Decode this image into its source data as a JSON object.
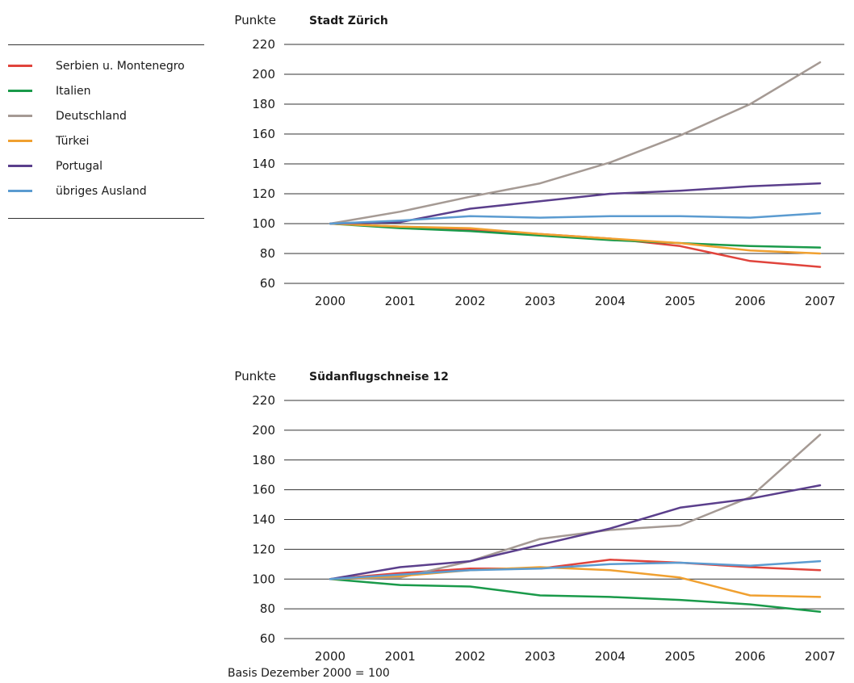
{
  "legend": {
    "items": [
      {
        "label": "Serbien u. Montenegro",
        "color": "#e0443c"
      },
      {
        "label": "Italien",
        "color": "#1a9a4a"
      },
      {
        "label": "Deutschland",
        "color": "#a59a94"
      },
      {
        "label": "Türkei",
        "color": "#f0a030"
      },
      {
        "label": "Portugal",
        "color": "#5b3f8c"
      },
      {
        "label": "übriges Ausland",
        "color": "#5b9bd0"
      }
    ]
  },
  "footnote": "Basis Dezember 2000 = 100",
  "chart_data": [
    {
      "type": "line",
      "title": "Stadt Zürich",
      "ylabel": "Punkte",
      "xlabel": "",
      "ylim": [
        60,
        220
      ],
      "yticks": [
        60,
        80,
        100,
        120,
        140,
        160,
        180,
        200,
        220
      ],
      "grid": true,
      "categories": [
        "2000",
        "2001",
        "2002",
        "2003",
        "2004",
        "2005",
        "2006",
        "2007"
      ],
      "series": [
        {
          "name": "Serbien u. Montenegro",
          "color": "#e0443c",
          "values": [
            100,
            98,
            96,
            93,
            90,
            85,
            75,
            71
          ]
        },
        {
          "name": "Italien",
          "color": "#1a9a4a",
          "values": [
            100,
            97,
            95,
            92,
            89,
            87,
            85,
            84
          ]
        },
        {
          "name": "Deutschland",
          "color": "#a59a94",
          "values": [
            100,
            108,
            118,
            127,
            141,
            159,
            180,
            208
          ]
        },
        {
          "name": "Türkei",
          "color": "#f0a030",
          "values": [
            100,
            98,
            97,
            93,
            90,
            87,
            82,
            80
          ]
        },
        {
          "name": "Portugal",
          "color": "#5b3f8c",
          "values": [
            100,
            101,
            110,
            115,
            120,
            122,
            125,
            127
          ]
        },
        {
          "name": "übriges Ausland",
          "color": "#5b9bd0",
          "values": [
            100,
            102,
            105,
            104,
            105,
            105,
            104,
            107
          ]
        }
      ]
    },
    {
      "type": "line",
      "title": "Südanflugschneise 12",
      "ylabel": "Punkte",
      "xlabel": "",
      "ylim": [
        60,
        220
      ],
      "yticks": [
        60,
        80,
        100,
        120,
        140,
        160,
        180,
        200,
        220
      ],
      "grid": true,
      "categories": [
        "2000",
        "2001",
        "2002",
        "2003",
        "2004",
        "2005",
        "2006",
        "2007"
      ],
      "series": [
        {
          "name": "Serbien u. Montenegro",
          "color": "#e0443c",
          "values": [
            100,
            104,
            107,
            107,
            113,
            111,
            108,
            106
          ]
        },
        {
          "name": "Italien",
          "color": "#1a9a4a",
          "values": [
            100,
            96,
            95,
            89,
            88,
            86,
            83,
            78
          ]
        },
        {
          "name": "Deutschland",
          "color": "#a59a94",
          "values": [
            100,
            101,
            112,
            127,
            133,
            136,
            155,
            197
          ]
        },
        {
          "name": "Türkei",
          "color": "#f0a030",
          "values": [
            100,
            102,
            106,
            108,
            106,
            101,
            89,
            88
          ]
        },
        {
          "name": "Portugal",
          "color": "#5b3f8c",
          "values": [
            100,
            108,
            112,
            123,
            134,
            148,
            154,
            163
          ]
        },
        {
          "name": "übriges Ausland",
          "color": "#5b9bd0",
          "values": [
            100,
            103,
            106,
            107,
            110,
            111,
            109,
            112
          ]
        }
      ]
    }
  ]
}
